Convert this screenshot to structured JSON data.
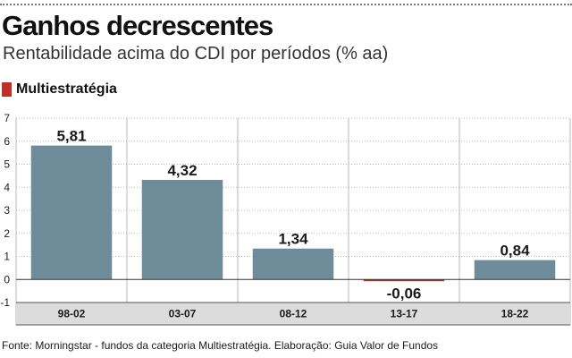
{
  "header": {
    "title": "Ganhos decrescentes",
    "subtitle": "Rentabilidade acima do CDI por períodos (% aa)"
  },
  "legend": {
    "label": "Multiestratégia",
    "color": "#c0302a"
  },
  "chart_data": {
    "type": "bar",
    "categories": [
      "98-02",
      "03-07",
      "08-12",
      "13-17",
      "18-22"
    ],
    "series": [
      {
        "name": "Multiestratégia",
        "values": [
          5.81,
          4.32,
          1.34,
          -0.06,
          0.84
        ]
      }
    ],
    "value_labels": [
      "5,81",
      "4,32",
      "1,34",
      "-0,06",
      "0,84"
    ],
    "ylim": [
      -1,
      7
    ],
    "yticks": [
      -1,
      0,
      1,
      2,
      3,
      4,
      5,
      6,
      7
    ],
    "title": "Ganhos decrescentes",
    "subtitle": "Rentabilidade acima do CDI por períodos (% aa)",
    "xlabel": "",
    "ylabel": "",
    "grid": true,
    "bar_color": "#6f8c9a",
    "negative_color": "#c0302a"
  },
  "footer": {
    "source": "Fonte: Morningstar - fundos da categoria Multiestratégia. Elaboração: Guia Valor de Fundos"
  }
}
